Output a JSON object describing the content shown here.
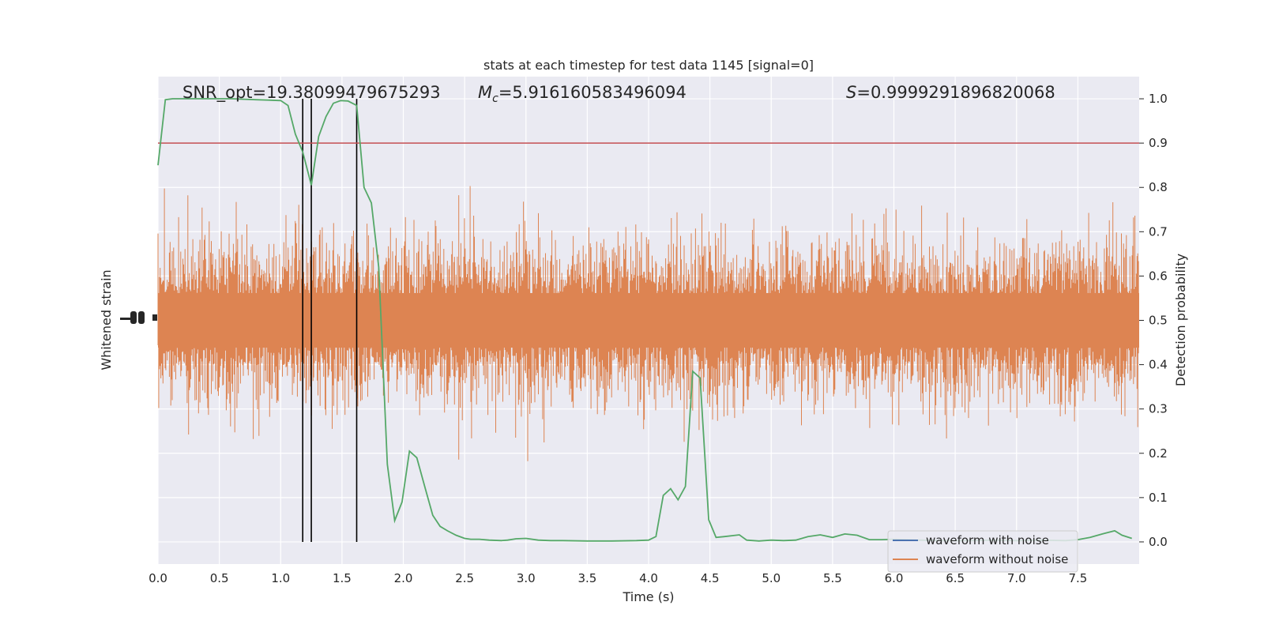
{
  "chart_data": {
    "type": "line",
    "title": "stats at each timestep for test data 1145 [signal=0]",
    "xlabel": "Time (s)",
    "ylabel_left": "Whitened strain",
    "ylabel_right": "Detection probability",
    "xlim": [
      0.0,
      8.0
    ],
    "ylim_right": [
      -0.05,
      1.05
    ],
    "x_ticks": [
      "0.0",
      "0.5",
      "1.0",
      "1.5",
      "2.0",
      "2.5",
      "3.0",
      "3.5",
      "4.0",
      "4.5",
      "5.0",
      "5.5",
      "6.0",
      "6.5",
      "7.0",
      "7.5"
    ],
    "y_ticks_right": [
      "0.0",
      "0.1",
      "0.2",
      "0.3",
      "0.4",
      "0.5",
      "0.6",
      "0.7",
      "0.8",
      "0.9",
      "1.0"
    ],
    "grid": true,
    "annotations": {
      "snr": "SNR_opt=19.38099479675293",
      "mc_symbol": "M",
      "mc_sub": "c",
      "mc_value": "=5.916160583496094",
      "s_symbol": "S",
      "s_value": "=0.9999291896820068"
    },
    "threshold": 0.9,
    "vertical_lines": [
      1.18,
      1.25,
      1.62
    ],
    "detection_probability": {
      "x": [
        0.0,
        0.06,
        0.12,
        0.2,
        0.3,
        0.4,
        0.5,
        0.6,
        0.7,
        0.8,
        0.9,
        1.0,
        1.06,
        1.12,
        1.18,
        1.25,
        1.31,
        1.37,
        1.43,
        1.49,
        1.55,
        1.62,
        1.68,
        1.74,
        1.8,
        1.87,
        1.93,
        1.99,
        2.05,
        2.11,
        2.18,
        2.24,
        2.3,
        2.36,
        2.43,
        2.5,
        2.55,
        2.62,
        2.7,
        2.8,
        2.85,
        2.92,
        3.0,
        3.1,
        3.2,
        3.3,
        3.5,
        3.7,
        3.9,
        4.0,
        4.06,
        4.12,
        4.18,
        4.24,
        4.3,
        4.36,
        4.42,
        4.49,
        4.55,
        4.62,
        4.74,
        4.8,
        4.9,
        5.0,
        5.1,
        5.2,
        5.3,
        5.4,
        5.5,
        5.6,
        5.7,
        5.8,
        5.9,
        6.0,
        6.2,
        6.4,
        6.6,
        6.8,
        7.0,
        7.2,
        7.4,
        7.5,
        7.6,
        7.7,
        7.8,
        7.86,
        7.94
      ],
      "values": [
        0.85,
        0.998,
        1.0,
        1.0,
        1.0,
        1.0,
        1.0,
        1.0,
        0.999,
        0.998,
        0.997,
        0.996,
        0.985,
        0.92,
        0.88,
        0.805,
        0.915,
        0.96,
        0.99,
        0.996,
        0.995,
        0.985,
        0.8,
        0.765,
        0.62,
        0.175,
        0.048,
        0.09,
        0.205,
        0.19,
        0.12,
        0.06,
        0.035,
        0.025,
        0.015,
        0.008,
        0.006,
        0.006,
        0.004,
        0.003,
        0.004,
        0.007,
        0.008,
        0.004,
        0.003,
        0.003,
        0.002,
        0.002,
        0.003,
        0.004,
        0.012,
        0.105,
        0.12,
        0.095,
        0.125,
        0.385,
        0.37,
        0.05,
        0.01,
        0.012,
        0.016,
        0.004,
        0.002,
        0.004,
        0.003,
        0.004,
        0.012,
        0.016,
        0.01,
        0.018,
        0.015,
        0.005,
        0.005,
        0.006,
        0.004,
        0.003,
        0.003,
        0.004,
        0.003,
        0.004,
        0.003,
        0.005,
        0.01,
        0.018,
        0.025,
        0.015,
        0.008
      ]
    },
    "series": [
      {
        "name": "waveform with noise",
        "color": "#4c72b0"
      },
      {
        "name": "waveform without noise",
        "color": "#dd8452"
      }
    ],
    "colors": {
      "background": "#eaeaf2",
      "grid": "#ffffff",
      "probability_line": "#55a868",
      "threshold_line": "#c44e52",
      "vertical_lines": "#000000",
      "noise_waveform": "#dd8452"
    }
  }
}
